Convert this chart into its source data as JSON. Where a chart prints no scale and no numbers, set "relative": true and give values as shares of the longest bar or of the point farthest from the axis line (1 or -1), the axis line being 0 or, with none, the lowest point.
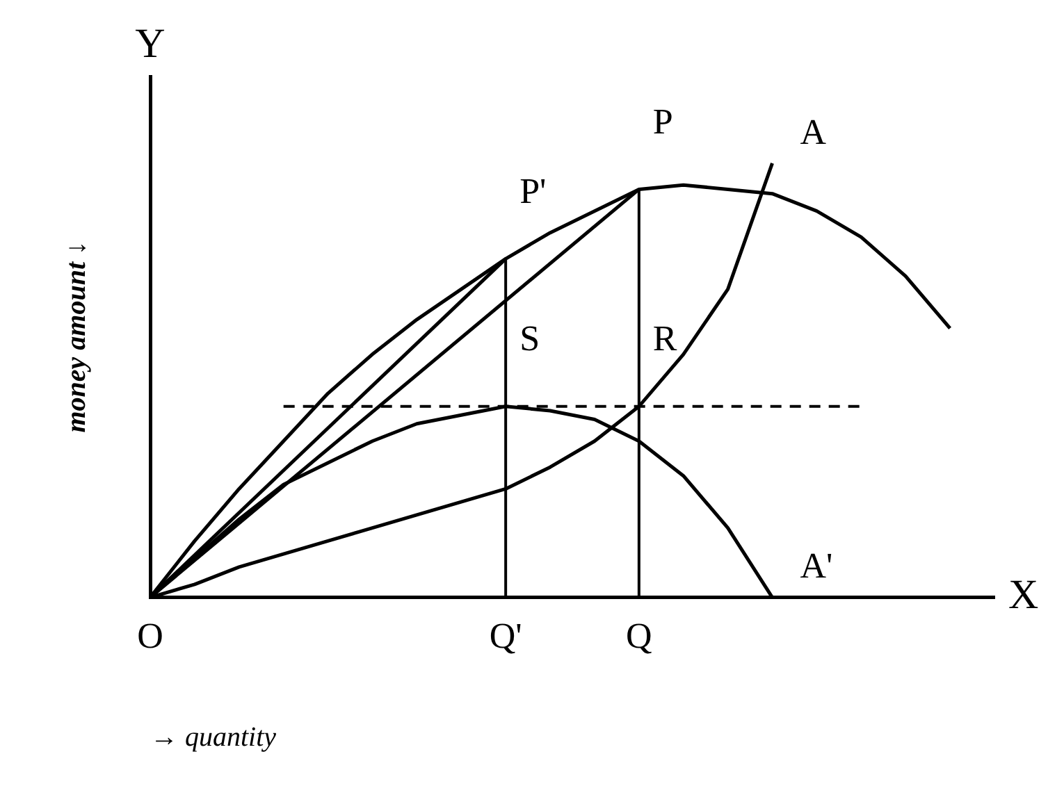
{
  "chart_data": {
    "type": "line",
    "relative": true,
    "xlabel": "→ quantity",
    "ylabel": "money amount ↓",
    "categories": [
      "O",
      null,
      null,
      null,
      null,
      null,
      null,
      null,
      "Q'",
      null,
      null,
      "Q",
      null,
      null,
      null,
      null,
      null,
      null,
      null,
      null
    ],
    "series": [
      {
        "color": "#000000",
        "values": [
          0,
          0.13,
          0.25,
          0.36,
          0.47,
          0.56,
          0.64,
          0.71,
          0.78,
          0.84,
          0.89,
          0.94,
          0.95,
          0.94,
          0.93,
          0.89,
          0.83,
          0.74,
          0.62,
          null
        ]
      },
      {
        "color": "#000000",
        "values": [
          0,
          0.03,
          0.07,
          0.1,
          0.13,
          0.16,
          0.19,
          0.22,
          0.25,
          0.3,
          0.36,
          0.44,
          0.56,
          0.71,
          1,
          null,
          null,
          null,
          null,
          null
        ]
      },
      {
        "color": "#000000",
        "values": [
          0,
          0.09,
          0.18,
          0.26,
          0.31,
          0.36,
          0.4,
          0.42,
          0.44,
          0.43,
          0.41,
          0.36,
          0.28,
          0.16,
          0,
          null,
          null,
          null,
          null,
          null
        ]
      },
      {
        "color": "#000000",
        "values": [
          0,
          null,
          null,
          null,
          null,
          null,
          null,
          null,
          0.78,
          null,
          null,
          null,
          null,
          null,
          null,
          null,
          null,
          null,
          null,
          null
        ]
      },
      {
        "color": "#000000",
        "values": [
          0,
          null,
          null,
          null,
          null,
          null,
          null,
          null,
          null,
          null,
          null,
          0.94,
          null,
          null,
          null,
          null,
          null,
          null,
          null,
          null
        ]
      }
    ],
    "ref_lines": [
      {
        "axis": "x",
        "value": "Q'"
      },
      {
        "axis": "x",
        "value": "Q"
      },
      {
        "axis": "y",
        "value": 0.44,
        "line_style": "dashed"
      }
    ],
    "annotations": [
      {
        "text": "P'",
        "x": "Q'",
        "y": 0.78
      },
      {
        "text": "P",
        "x": "Q",
        "y": 0.94
      },
      {
        "text": "S",
        "x": "Q'",
        "y": 0.44
      },
      {
        "text": "R",
        "x": "Q",
        "y": 0.44
      },
      "A",
      "A'",
      "X",
      "Y"
    ],
    "legend": false,
    "grid": false,
    "marker": "none"
  }
}
